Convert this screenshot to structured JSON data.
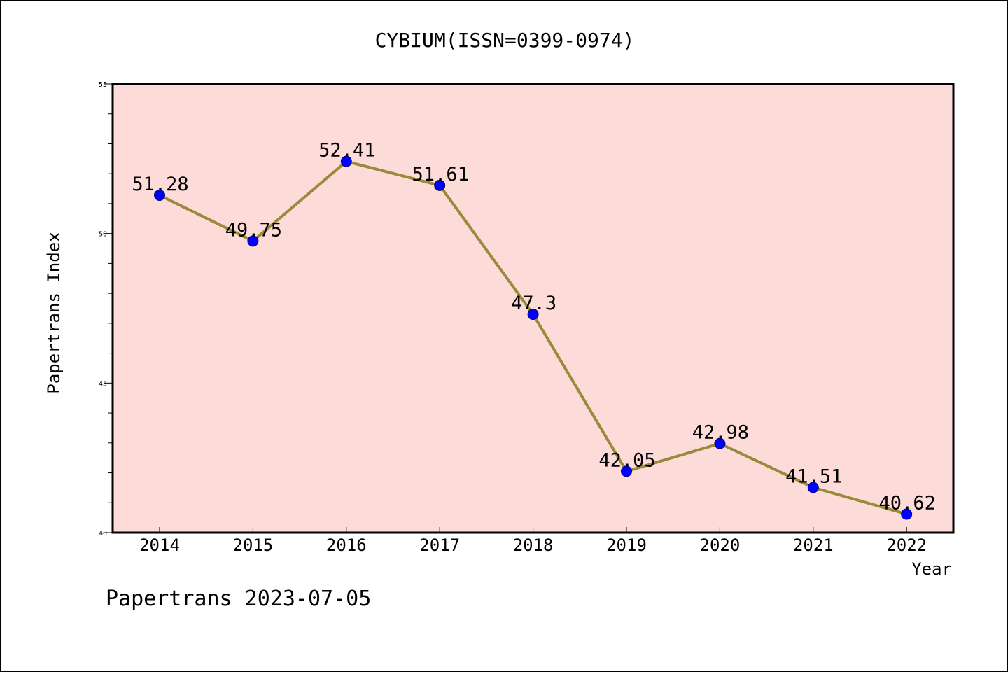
{
  "chart_data": {
    "type": "line",
    "title": "CYBIUM(ISSN=0399-0974)",
    "xlabel": "Year",
    "ylabel": "Papertrans Index",
    "footer": "Papertrans 2023-07-05",
    "categories": [
      "2014",
      "2015",
      "2016",
      "2017",
      "2018",
      "2019",
      "2020",
      "2021",
      "2022"
    ],
    "series": [
      {
        "values": [
          51.28,
          49.75,
          52.41,
          51.61,
          47.3,
          42.05,
          42.98,
          41.51,
          40.62
        ],
        "labels": [
          "51.28",
          "49.75",
          "52.41",
          "51.61",
          "47.3",
          "42.05",
          "42.98",
          "41.51",
          "40.62"
        ]
      }
    ],
    "ylim": [
      40,
      55
    ],
    "yticks": [
      "40",
      "45",
      "50",
      "55"
    ],
    "grid": false,
    "legend": "none",
    "colors": {
      "plot_background": "#fddbd8",
      "line": "#998a3c",
      "marker": "#0000ff",
      "marker_edge": "#00007a",
      "axes": "#000000"
    }
  }
}
